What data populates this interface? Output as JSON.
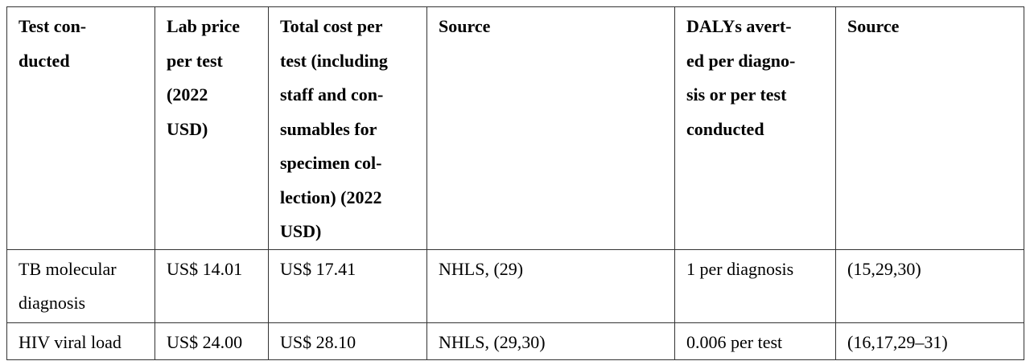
{
  "table": {
    "header": [
      "Test con-\nducted",
      "Lab price\nper test\n(2022\nUSD)",
      "Total cost per\ntest (including\nstaff and con-\nsumables for\nspecimen col-\nlection) (2022\nUSD)",
      "Source",
      "DALYs avert-\ned per diagno-\nsis or per test\nconducted",
      "Source"
    ],
    "rows": [
      [
        "TB molecular\ndiagnosis",
        "US$ 14.01",
        "US$ 17.41",
        "NHLS, (29)",
        "1 per diagnosis",
        "(15,29,30)"
      ],
      [
        "HIV viral load",
        "US$ 24.00",
        "US$ 28.10",
        "NHLS, (29,30)",
        "0.006 per test",
        "(16,17,29–31)"
      ]
    ]
  }
}
